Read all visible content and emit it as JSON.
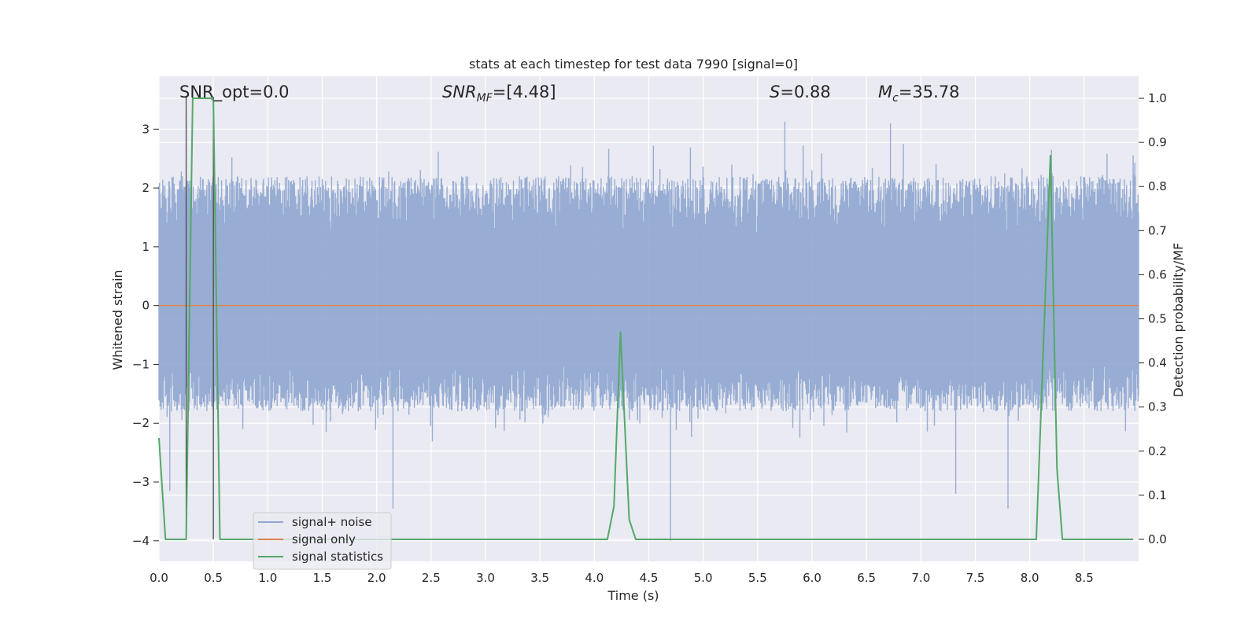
{
  "chart_data": {
    "type": "line",
    "title": "stats at each timestep for test data 7990 [signal=0]",
    "xlabel": "Time (s)",
    "ylabel_left": "Whitened strain",
    "ylabel_right": "Detection probability/MF",
    "xlim": [
      0.0,
      9.0
    ],
    "ylim_left": [
      -4.35,
      3.9
    ],
    "ylim_right": [
      -0.05,
      1.05
    ],
    "x_ticks": [
      "0.0",
      "0.5",
      "1.0",
      "1.5",
      "2.0",
      "2.5",
      "3.0",
      "3.5",
      "4.0",
      "4.5",
      "5.0",
      "5.5",
      "6.0",
      "6.5",
      "7.0",
      "7.5",
      "8.0",
      "8.5"
    ],
    "y_ticks_left": [
      "3",
      "2",
      "1",
      "0",
      "−1",
      "−2",
      "−3",
      "−4"
    ],
    "y_ticks_right": [
      "1.0",
      "0.9",
      "0.8",
      "0.7",
      "0.6",
      "0.5",
      "0.4",
      "0.3",
      "0.2",
      "0.1",
      "0.0"
    ],
    "grid": true,
    "background": "#eaeaf2",
    "legend_position": "lower-left",
    "annotations": {
      "snr_opt": "SNR_opt=0.0",
      "snr_mf_symbol": "SNR",
      "snr_mf_sub": "MF",
      "snr_mf_value": "=[4.48]",
      "s_symbol": "S",
      "s_value": "=0.88",
      "mc_symbol": "M",
      "mc_sub": "c",
      "mc_value": "=35.78"
    },
    "series": [
      {
        "name": "signal+ noise",
        "axis": "left",
        "color": "#8fa6cf",
        "description_values": {
          "envelope_upper_typical": 2.2,
          "envelope_lower_typical": -1.8,
          "max": 3.13,
          "min": -4.0,
          "spikes": [
            {
              "x": 0.1,
              "y": -3.15
            },
            {
              "x": 2.15,
              "y": -3.45
            },
            {
              "x": 4.7,
              "y": -4.0
            },
            {
              "x": 5.75,
              "y": 3.13
            },
            {
              "x": 6.72,
              "y": 3.1
            },
            {
              "x": 7.32,
              "y": -3.2
            },
            {
              "x": 7.8,
              "y": -3.45
            },
            {
              "x": 8.2,
              "y": 2.65
            }
          ]
        }
      },
      {
        "name": "signal only",
        "axis": "left",
        "color": "#dd8452",
        "x": [
          0.0,
          9.0
        ],
        "y": [
          0.0,
          0.0
        ]
      },
      {
        "name": "signal statistics",
        "axis": "right",
        "color": "#55a868",
        "x": [
          0.0,
          0.06,
          0.25,
          0.31,
          0.48,
          0.5,
          0.56,
          3.9,
          4.12,
          4.18,
          4.24,
          4.32,
          4.38,
          8.06,
          8.19,
          8.25,
          8.3,
          8.95
        ],
        "y": [
          0.23,
          0.0,
          0.0,
          1.0,
          1.0,
          0.995,
          0.0,
          0.0,
          0.0,
          0.075,
          0.47,
          0.045,
          0.0,
          0.0,
          0.87,
          0.16,
          0.0,
          0.0
        ]
      }
    ],
    "vertical_markers": [
      0.25,
      0.5
    ]
  }
}
